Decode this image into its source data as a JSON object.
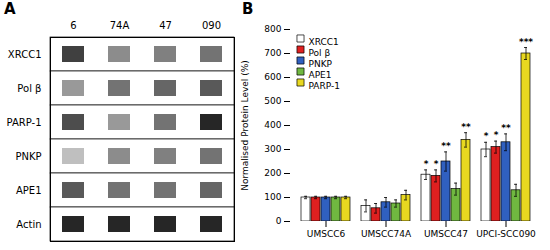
{
  "chart_data": [
    {
      "type": "heatmap",
      "title": "A",
      "x": [
        "6",
        "74A",
        "47",
        "090"
      ],
      "y": [
        "XRCC1",
        "Pol β",
        "PARP-1",
        "PNKP",
        "APE1",
        "Actin"
      ],
      "values": [
        [
          0.75,
          0.45,
          0.5,
          0.55
        ],
        [
          0.4,
          0.55,
          0.6,
          0.65
        ],
        [
          0.7,
          0.4,
          0.55,
          0.85
        ],
        [
          0.25,
          0.45,
          0.5,
          0.55
        ],
        [
          0.65,
          0.55,
          0.55,
          0.6
        ],
        [
          0.85,
          0.85,
          0.85,
          0.85
        ]
      ]
    },
    {
      "type": "bar",
      "title": "B",
      "categories": [
        "UMSCC6",
        "UMSCC74A",
        "UMSCC47",
        "UPCI-SCC090"
      ],
      "series": [
        {
          "name": "XRCC1",
          "color": "#ffffff",
          "values": [
            100,
            65,
            195,
            300
          ],
          "errors": [
            5,
            25,
            20,
            30
          ],
          "significance": [
            null,
            null,
            "*",
            "*"
          ]
        },
        {
          "name": "Pol β",
          "color": "#e02020",
          "values": [
            100,
            55,
            190,
            310
          ],
          "errors": [
            5,
            20,
            25,
            25
          ],
          "significance": [
            null,
            null,
            "*",
            "*"
          ]
        },
        {
          "name": "PNKP",
          "color": "#3060c0",
          "values": [
            100,
            80,
            250,
            330
          ],
          "errors": [
            5,
            20,
            40,
            35
          ],
          "significance": [
            null,
            null,
            "**",
            "**"
          ]
        },
        {
          "name": "APE1",
          "color": "#70b840",
          "values": [
            100,
            75,
            135,
            130
          ],
          "errors": [
            5,
            15,
            25,
            25
          ],
          "significance": [
            null,
            null,
            null,
            null
          ]
        },
        {
          "name": "PARP-1",
          "color": "#e8d820",
          "values": [
            100,
            110,
            340,
            700
          ],
          "errors": [
            5,
            20,
            30,
            25
          ],
          "significance": [
            null,
            null,
            "**",
            "***"
          ]
        }
      ],
      "ylabel": "Normalised Protein Level (%)",
      "ylim": [
        0,
        800
      ],
      "yticks": [
        0,
        100,
        200,
        300,
        400,
        500,
        600,
        700,
        800
      ],
      "legend": "upper left",
      "grid": false
    }
  ]
}
